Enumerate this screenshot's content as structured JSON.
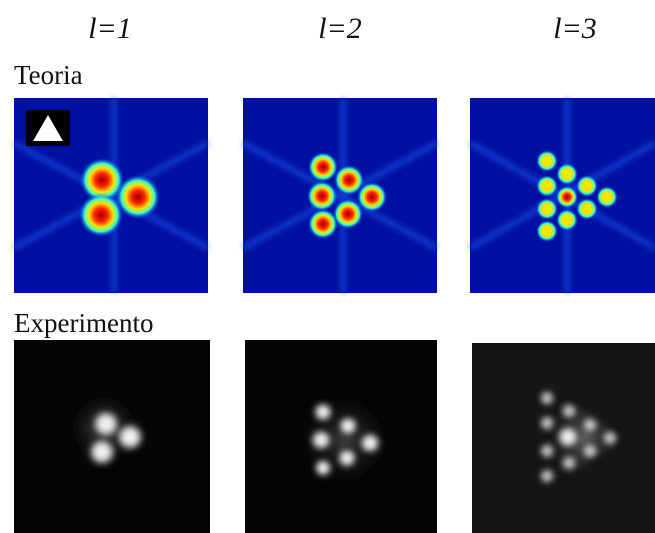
{
  "columns": [
    "l=1",
    "l=2",
    "l=3"
  ],
  "rows": [
    "Teoria",
    "Experimento"
  ]
}
